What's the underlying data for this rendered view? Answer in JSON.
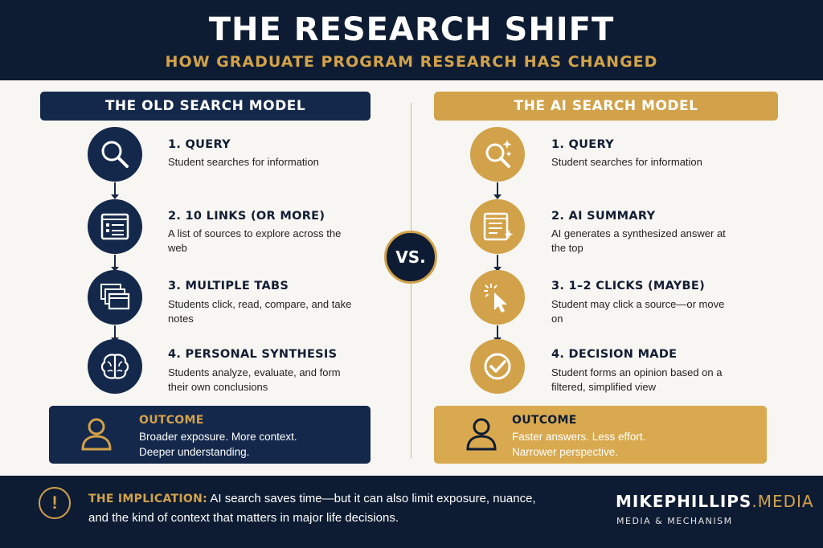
{
  "header": {
    "title": "THE RESEARCH SHIFT",
    "subtitle": "HOW GRADUATE PROGRAM RESEARCH HAS CHANGED"
  },
  "colors": {
    "navy": "#0e1c33",
    "panel_navy": "#14284b",
    "gold": "#d2a24a",
    "outcome_gold": "#d9a94f"
  },
  "vs_label": "VS.",
  "left": {
    "heading": "THE OLD SEARCH MODEL",
    "steps": [
      {
        "title": "1. QUERY",
        "desc": "Student searches for information",
        "icon": "magnifier-icon"
      },
      {
        "title": "2. 10 LINKS (OR MORE)",
        "desc": "A list of sources to explore across the web",
        "icon": "link-list-icon"
      },
      {
        "title": "3. MULTIPLE TABS",
        "desc": "Students click, read, compare, and take notes",
        "icon": "browser-tabs-icon"
      },
      {
        "title": "4. PERSONAL SYNTHESIS",
        "desc": "Students analyze, evaluate, and form their own conclusions",
        "icon": "brain-icon"
      }
    ],
    "outcome": {
      "title": "OUTCOME",
      "line1": "Broader exposure. More context.",
      "line2": "Deeper understanding.",
      "icon": "person-icon"
    }
  },
  "right": {
    "heading": "THE AI SEARCH MODEL",
    "steps": [
      {
        "title": "1. QUERY",
        "desc": "Student searches for information",
        "icon": "sparkle-magnifier-icon"
      },
      {
        "title": "2. AI SUMMARY",
        "desc": "AI generates a synthesized answer at the top",
        "icon": "ai-document-icon"
      },
      {
        "title": "3. 1–2 CLICKS (MAYBE)",
        "desc": "Student may click a source—or move on",
        "icon": "cursor-click-icon"
      },
      {
        "title": "4. DECISION MADE",
        "desc": "Student forms an opinion based on a filtered, simplified view",
        "icon": "checkmark-icon"
      }
    ],
    "outcome": {
      "title": "OUTCOME",
      "line1": "Faster answers. Less effort.",
      "line2": "Narrower perspective.",
      "icon": "person-icon"
    }
  },
  "footer": {
    "label": "THE IMPLICATION:",
    "line1": "AI search saves time—but it can also limit exposure, nuance,",
    "line2": "and the kind of context that matters in major life decisions.",
    "brand_main": "MIKEPHILLIPS",
    "brand_accent": ".MEDIA",
    "brand_sub": "MEDIA & MECHANISM",
    "warning_glyph": "!"
  }
}
